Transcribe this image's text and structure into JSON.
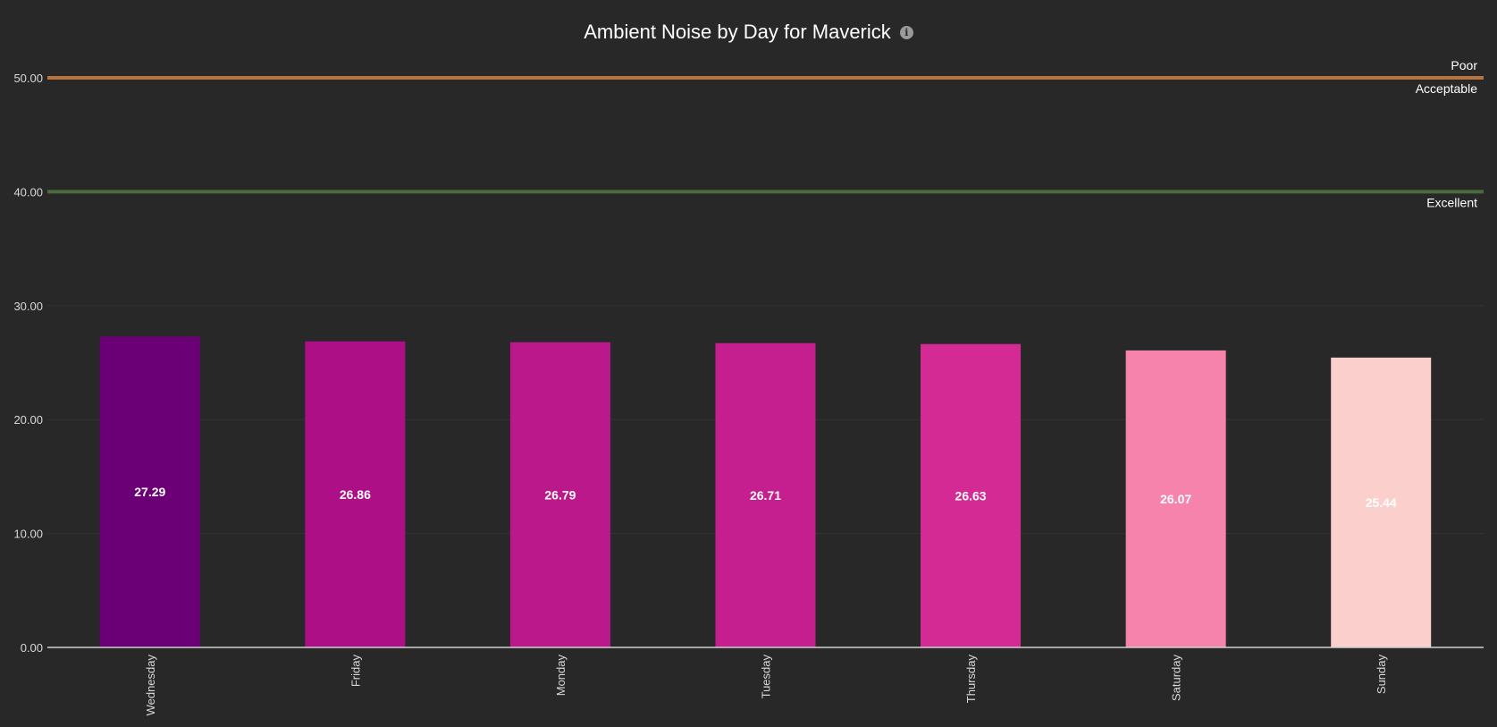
{
  "chart_data": {
    "type": "bar",
    "title": "Ambient Noise by Day for Maverick",
    "categories": [
      "Wednesday",
      "Friday",
      "Monday",
      "Tuesday",
      "Thursday",
      "Saturday",
      "Sunday"
    ],
    "values": [
      27.29,
      26.86,
      26.79,
      26.71,
      26.63,
      26.07,
      25.44
    ],
    "value_labels": [
      "27.29",
      "26.86",
      "26.79",
      "26.71",
      "26.63",
      "26.07",
      "25.44"
    ],
    "bar_colors": [
      "#6b0076",
      "#ad0f86",
      "#bb188b",
      "#c51e8e",
      "#d32a94",
      "#f583ab",
      "#fbcfcb"
    ],
    "ylim": [
      0,
      50
    ],
    "yticks": [
      0,
      10,
      20,
      30,
      40,
      50
    ],
    "ytick_labels": [
      "0.00",
      "10.00",
      "20.00",
      "30.00",
      "40.00",
      "50.00"
    ],
    "grid": true,
    "xlabel": "",
    "ylabel": "",
    "threshold_lines": [
      {
        "value": 50,
        "color": "#b8743c",
        "label_above": "Poor",
        "label_below": "Acceptable"
      },
      {
        "value": 40,
        "color": "#4a6b3b",
        "label_above": "",
        "label_below": "Excellent"
      }
    ]
  }
}
